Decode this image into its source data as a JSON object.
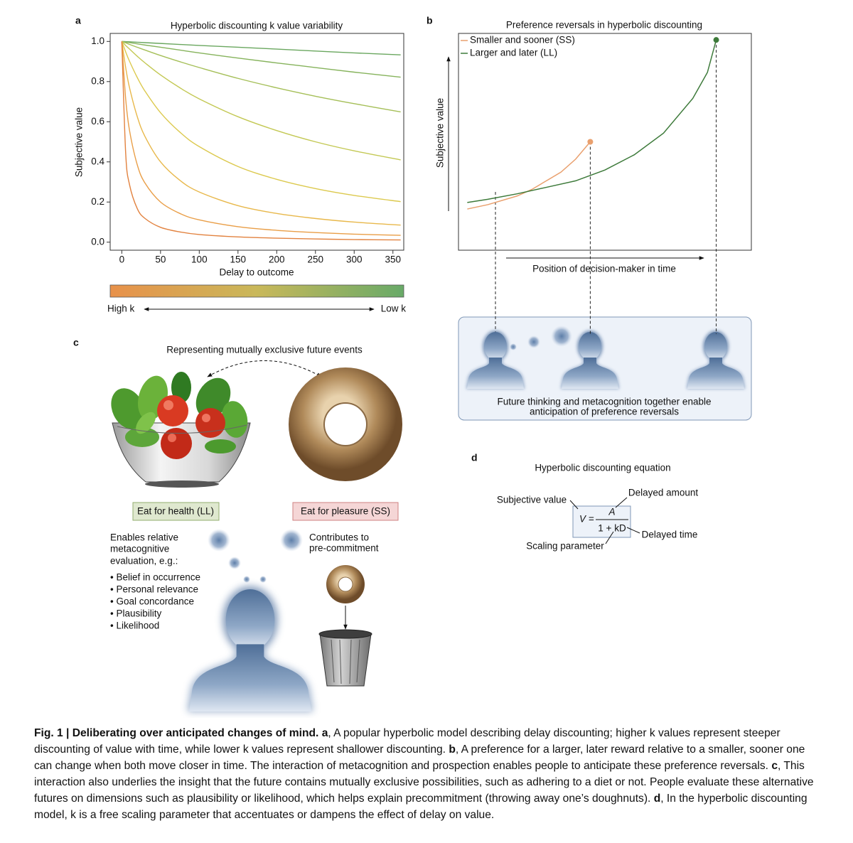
{
  "panel_labels": [
    "a",
    "b",
    "c",
    "d"
  ],
  "chart_data": [
    {
      "type": "line",
      "title": "Hyperbolic discounting k value variability",
      "xlabel": "Delay to outcome",
      "ylabel": "Subjective value",
      "x": [
        0,
        5,
        10,
        20,
        30,
        50,
        75,
        100,
        150,
        200,
        250,
        300,
        360
      ],
      "xlim": [
        -15,
        364
      ],
      "ylim": [
        -0.04,
        1.04
      ],
      "xticks": [
        0,
        50,
        100,
        150,
        200,
        250,
        300,
        350
      ],
      "yticks": [
        {
          "value": 0,
          "label": "0.0"
        },
        0.2,
        0.4,
        0.6,
        0.8,
        {
          "value": 1,
          "label": "1.0"
        }
      ],
      "series": [
        {
          "color": "#6aa75f",
          "values": [
            1,
            0.999,
            0.998,
            0.996,
            0.994,
            0.99,
            0.985,
            0.98,
            0.971,
            0.962,
            0.952,
            0.943,
            0.933
          ]
        },
        {
          "color": "#86b35c",
          "values": [
            1,
            0.997,
            0.994,
            0.988,
            0.982,
            0.971,
            0.957,
            0.943,
            0.917,
            0.893,
            0.87,
            0.847,
            0.822
          ]
        },
        {
          "color": "#a5bf58",
          "values": [
            1,
            0.993,
            0.985,
            0.971,
            0.957,
            0.93,
            0.899,
            0.87,
            0.816,
            0.769,
            0.727,
            0.69,
            0.649
          ]
        },
        {
          "color": "#c3c853",
          "values": [
            1,
            0.98,
            0.962,
            0.926,
            0.893,
            0.833,
            0.769,
            0.714,
            0.625,
            0.556,
            0.5,
            0.455,
            0.41
          ]
        },
        {
          "color": "#dcc94e",
          "values": [
            1,
            0.948,
            0.901,
            0.82,
            0.752,
            0.645,
            0.548,
            0.476,
            0.377,
            0.313,
            0.267,
            0.233,
            0.202
          ]
        },
        {
          "color": "#e8b84b",
          "values": [
            1,
            0.87,
            0.769,
            0.625,
            0.526,
            0.4,
            0.308,
            0.25,
            0.182,
            0.143,
            0.118,
            0.1,
            0.085
          ]
        },
        {
          "color": "#e99e47",
          "values": [
            1,
            0.714,
            0.556,
            0.385,
            0.294,
            0.2,
            0.143,
            0.111,
            0.077,
            0.059,
            0.048,
            0.04,
            0.034
          ]
        },
        {
          "color": "#e2823f",
          "values": [
            1,
            0.444,
            0.286,
            0.167,
            0.118,
            0.074,
            0.051,
            0.038,
            0.026,
            0.02,
            0.016,
            0.013,
            0.011
          ]
        }
      ],
      "colorbar": {
        "colors": [
          "#e8914a",
          "#c9b85a",
          "#68aa68"
        ],
        "left": "High k",
        "right": "Low k"
      }
    },
    {
      "type": "line",
      "title": "Preference reversals in hyperbolic discounting",
      "xlabel": "Position of decision-maker in time",
      "ylabel": "Subjective value",
      "xlim": [
        0,
        100
      ],
      "ylim": [
        0,
        100
      ],
      "legend": "upper left",
      "series": [
        {
          "name": "Smaller and sooner (SS)",
          "color": "#e9a06e",
          "x": [
            3,
            10,
            20,
            25,
            30,
            35,
            40,
            45
          ],
          "values": [
            19,
            21,
            25,
            28,
            32,
            36,
            42,
            50
          ]
        },
        {
          "name": "Larger and later (LL)",
          "color": "#3d7a3a",
          "x": [
            3,
            10,
            20,
            30,
            40,
            50,
            60,
            70,
            80,
            85,
            88
          ],
          "values": [
            22,
            23.5,
            26,
            29,
            32,
            37,
            44,
            54,
            70,
            82,
            97
          ]
        }
      ]
    }
  ],
  "panel_b_box": {
    "text": [
      "Future thinking and metacognition together enable",
      "anticipation of preference reversals"
    ]
  },
  "panel_c": {
    "title": "Representing mutually exclusive future events",
    "left_label": "Eat for health (LL)",
    "right_label": "Eat for pleasure (SS)",
    "left_text": [
      "Enables relative",
      "metacognitive",
      "evaluation, e.g.:"
    ],
    "bullets": [
      "• Belief in occurrence",
      "• Personal relevance",
      "• Goal concordance",
      "• Plausibility",
      "• Likelihood"
    ],
    "right_text": [
      "Contributes to",
      "pre-commitment"
    ]
  },
  "panel_d": {
    "title": "Hyperbolic discounting equation",
    "equation": {
      "lhs": "V =",
      "numerator": "A",
      "denominator": "1 + kD"
    },
    "labels": {
      "subjective_value": "Subjective value",
      "delayed_amount": "Delayed amount",
      "delayed_time": "Delayed time",
      "scaling_parameter": "Scaling parameter"
    }
  },
  "caption": {
    "title": "Fig. 1 | Deliberating over anticipated changes of mind.",
    "parts": [
      {
        "label": "a",
        "text": ", A popular hyperbolic model describing delay discounting; higher k values represent steeper discounting of value with time, while lower k values represent shallower discounting. "
      },
      {
        "label": "b",
        "text": ", A preference for a larger, later reward relative to a smaller, sooner one can change when both move closer in time. The interaction of metacognition and prospection enables people to anticipate these preference reversals. "
      },
      {
        "label": "c",
        "text": ", This interaction also underlies the insight that the future contains mutually exclusive possibilities, such as adhering to a diet or not. People evaluate these alternative futures on dimensions such as plausibility or likelihood, which helps explain precommitment (throwing away one’s doughnuts). "
      },
      {
        "label": "d",
        "text": ", In the hyperbolic discounting model, k is a free scaling parameter that accentuates or dampens the effect of delay on value."
      }
    ]
  }
}
